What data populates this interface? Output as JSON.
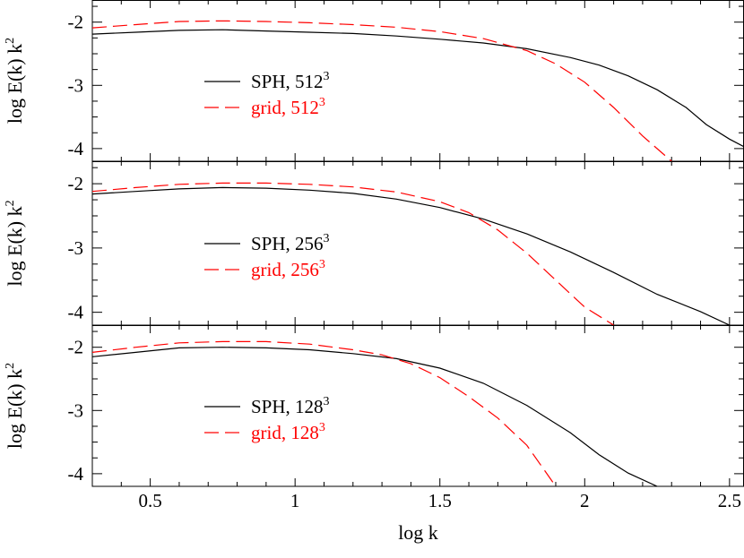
{
  "chart_data": [
    {
      "type": "line",
      "panel": "top",
      "ylabel": "log E(k) k",
      "ylabel_sup": "2",
      "xlim": [
        0.3,
        2.55
      ],
      "ylim": [
        -4.2,
        -1.65
      ],
      "yticks": [
        "-2",
        "-3",
        "-4"
      ],
      "series": [
        {
          "name": "SPH, 512",
          "name_sup": "3",
          "color": "#000000",
          "style": "solid",
          "x": [
            0.3,
            0.45,
            0.6,
            0.75,
            0.9,
            1.05,
            1.2,
            1.35,
            1.5,
            1.65,
            1.8,
            1.95,
            2.05,
            2.15,
            2.25,
            2.35,
            2.42,
            2.5,
            2.55
          ],
          "y": [
            -2.19,
            -2.16,
            -2.13,
            -2.12,
            -2.14,
            -2.16,
            -2.18,
            -2.22,
            -2.27,
            -2.33,
            -2.42,
            -2.56,
            -2.68,
            -2.85,
            -3.07,
            -3.35,
            -3.62,
            -3.85,
            -3.97
          ]
        },
        {
          "name": "grid, 512",
          "name_sup": "3",
          "color": "#ff0000",
          "style": "dashed",
          "x": [
            0.3,
            0.45,
            0.6,
            0.75,
            0.9,
            1.05,
            1.2,
            1.35,
            1.5,
            1.65,
            1.8,
            1.9,
            2.0,
            2.1,
            2.2,
            2.3
          ],
          "y": [
            -2.09,
            -2.04,
            -1.99,
            -1.98,
            -1.99,
            -2.01,
            -2.04,
            -2.08,
            -2.15,
            -2.26,
            -2.45,
            -2.66,
            -2.95,
            -3.35,
            -3.8,
            -4.2
          ]
        }
      ]
    },
    {
      "type": "line",
      "panel": "middle",
      "ylabel": "log E(k) k",
      "ylabel_sup": "2",
      "xlim": [
        0.3,
        2.55
      ],
      "ylim": [
        -4.2,
        -1.65
      ],
      "yticks": [
        "-2",
        "-3",
        "-4"
      ],
      "series": [
        {
          "name": "SPH, 256",
          "name_sup": "3",
          "color": "#000000",
          "style": "solid",
          "x": [
            0.3,
            0.45,
            0.6,
            0.75,
            0.9,
            1.05,
            1.2,
            1.35,
            1.5,
            1.65,
            1.8,
            1.95,
            2.1,
            2.25,
            2.4,
            2.5
          ],
          "y": [
            -2.16,
            -2.12,
            -2.08,
            -2.06,
            -2.07,
            -2.1,
            -2.15,
            -2.24,
            -2.37,
            -2.55,
            -2.78,
            -3.06,
            -3.38,
            -3.72,
            -3.99,
            -4.2
          ]
        },
        {
          "name": "grid, 256",
          "name_sup": "3",
          "color": "#ff0000",
          "style": "dashed",
          "x": [
            0.3,
            0.45,
            0.6,
            0.75,
            0.9,
            1.05,
            1.2,
            1.35,
            1.5,
            1.6,
            1.7,
            1.8,
            1.9,
            2.0,
            2.1
          ],
          "y": [
            -2.12,
            -2.06,
            -2.01,
            -1.99,
            -1.99,
            -2.01,
            -2.05,
            -2.13,
            -2.28,
            -2.45,
            -2.72,
            -3.08,
            -3.5,
            -3.92,
            -4.2
          ]
        }
      ]
    },
    {
      "type": "line",
      "panel": "bottom",
      "ylabel": "log E(k) k",
      "ylabel_sup": "2",
      "xlabel": "log k",
      "xlim": [
        0.3,
        2.55
      ],
      "ylim": [
        -4.2,
        -1.65
      ],
      "xticks": [
        "0.5",
        "1",
        "1.5",
        "2",
        "2.5"
      ],
      "yticks": [
        "-2",
        "-3",
        "-4"
      ],
      "series": [
        {
          "name": "SPH, 128",
          "name_sup": "3",
          "color": "#000000",
          "style": "solid",
          "x": [
            0.3,
            0.45,
            0.6,
            0.75,
            0.9,
            1.05,
            1.2,
            1.35,
            1.5,
            1.65,
            1.8,
            1.95,
            2.05,
            2.15,
            2.25
          ],
          "y": [
            -2.15,
            -2.08,
            -2.01,
            -2.0,
            -2.01,
            -2.04,
            -2.1,
            -2.18,
            -2.33,
            -2.57,
            -2.92,
            -3.35,
            -3.7,
            -3.99,
            -4.2
          ]
        },
        {
          "name": "grid, 128",
          "name_sup": "3",
          "color": "#ff0000",
          "style": "dashed",
          "x": [
            0.3,
            0.45,
            0.6,
            0.75,
            0.9,
            1.05,
            1.2,
            1.3,
            1.4,
            1.5,
            1.6,
            1.7,
            1.8,
            1.9
          ],
          "y": [
            -2.08,
            -2.0,
            -1.93,
            -1.91,
            -1.91,
            -1.95,
            -2.04,
            -2.12,
            -2.26,
            -2.48,
            -2.78,
            -3.12,
            -3.55,
            -4.2
          ]
        }
      ]
    }
  ]
}
